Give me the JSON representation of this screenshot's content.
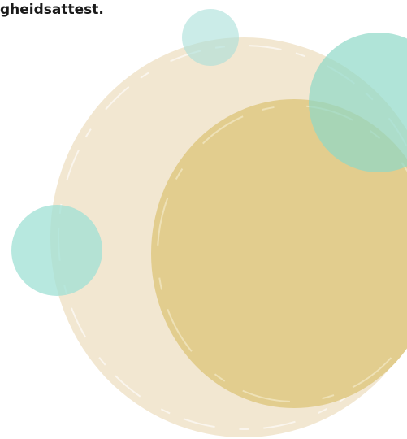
{
  "text": "gheidsattest."
}
